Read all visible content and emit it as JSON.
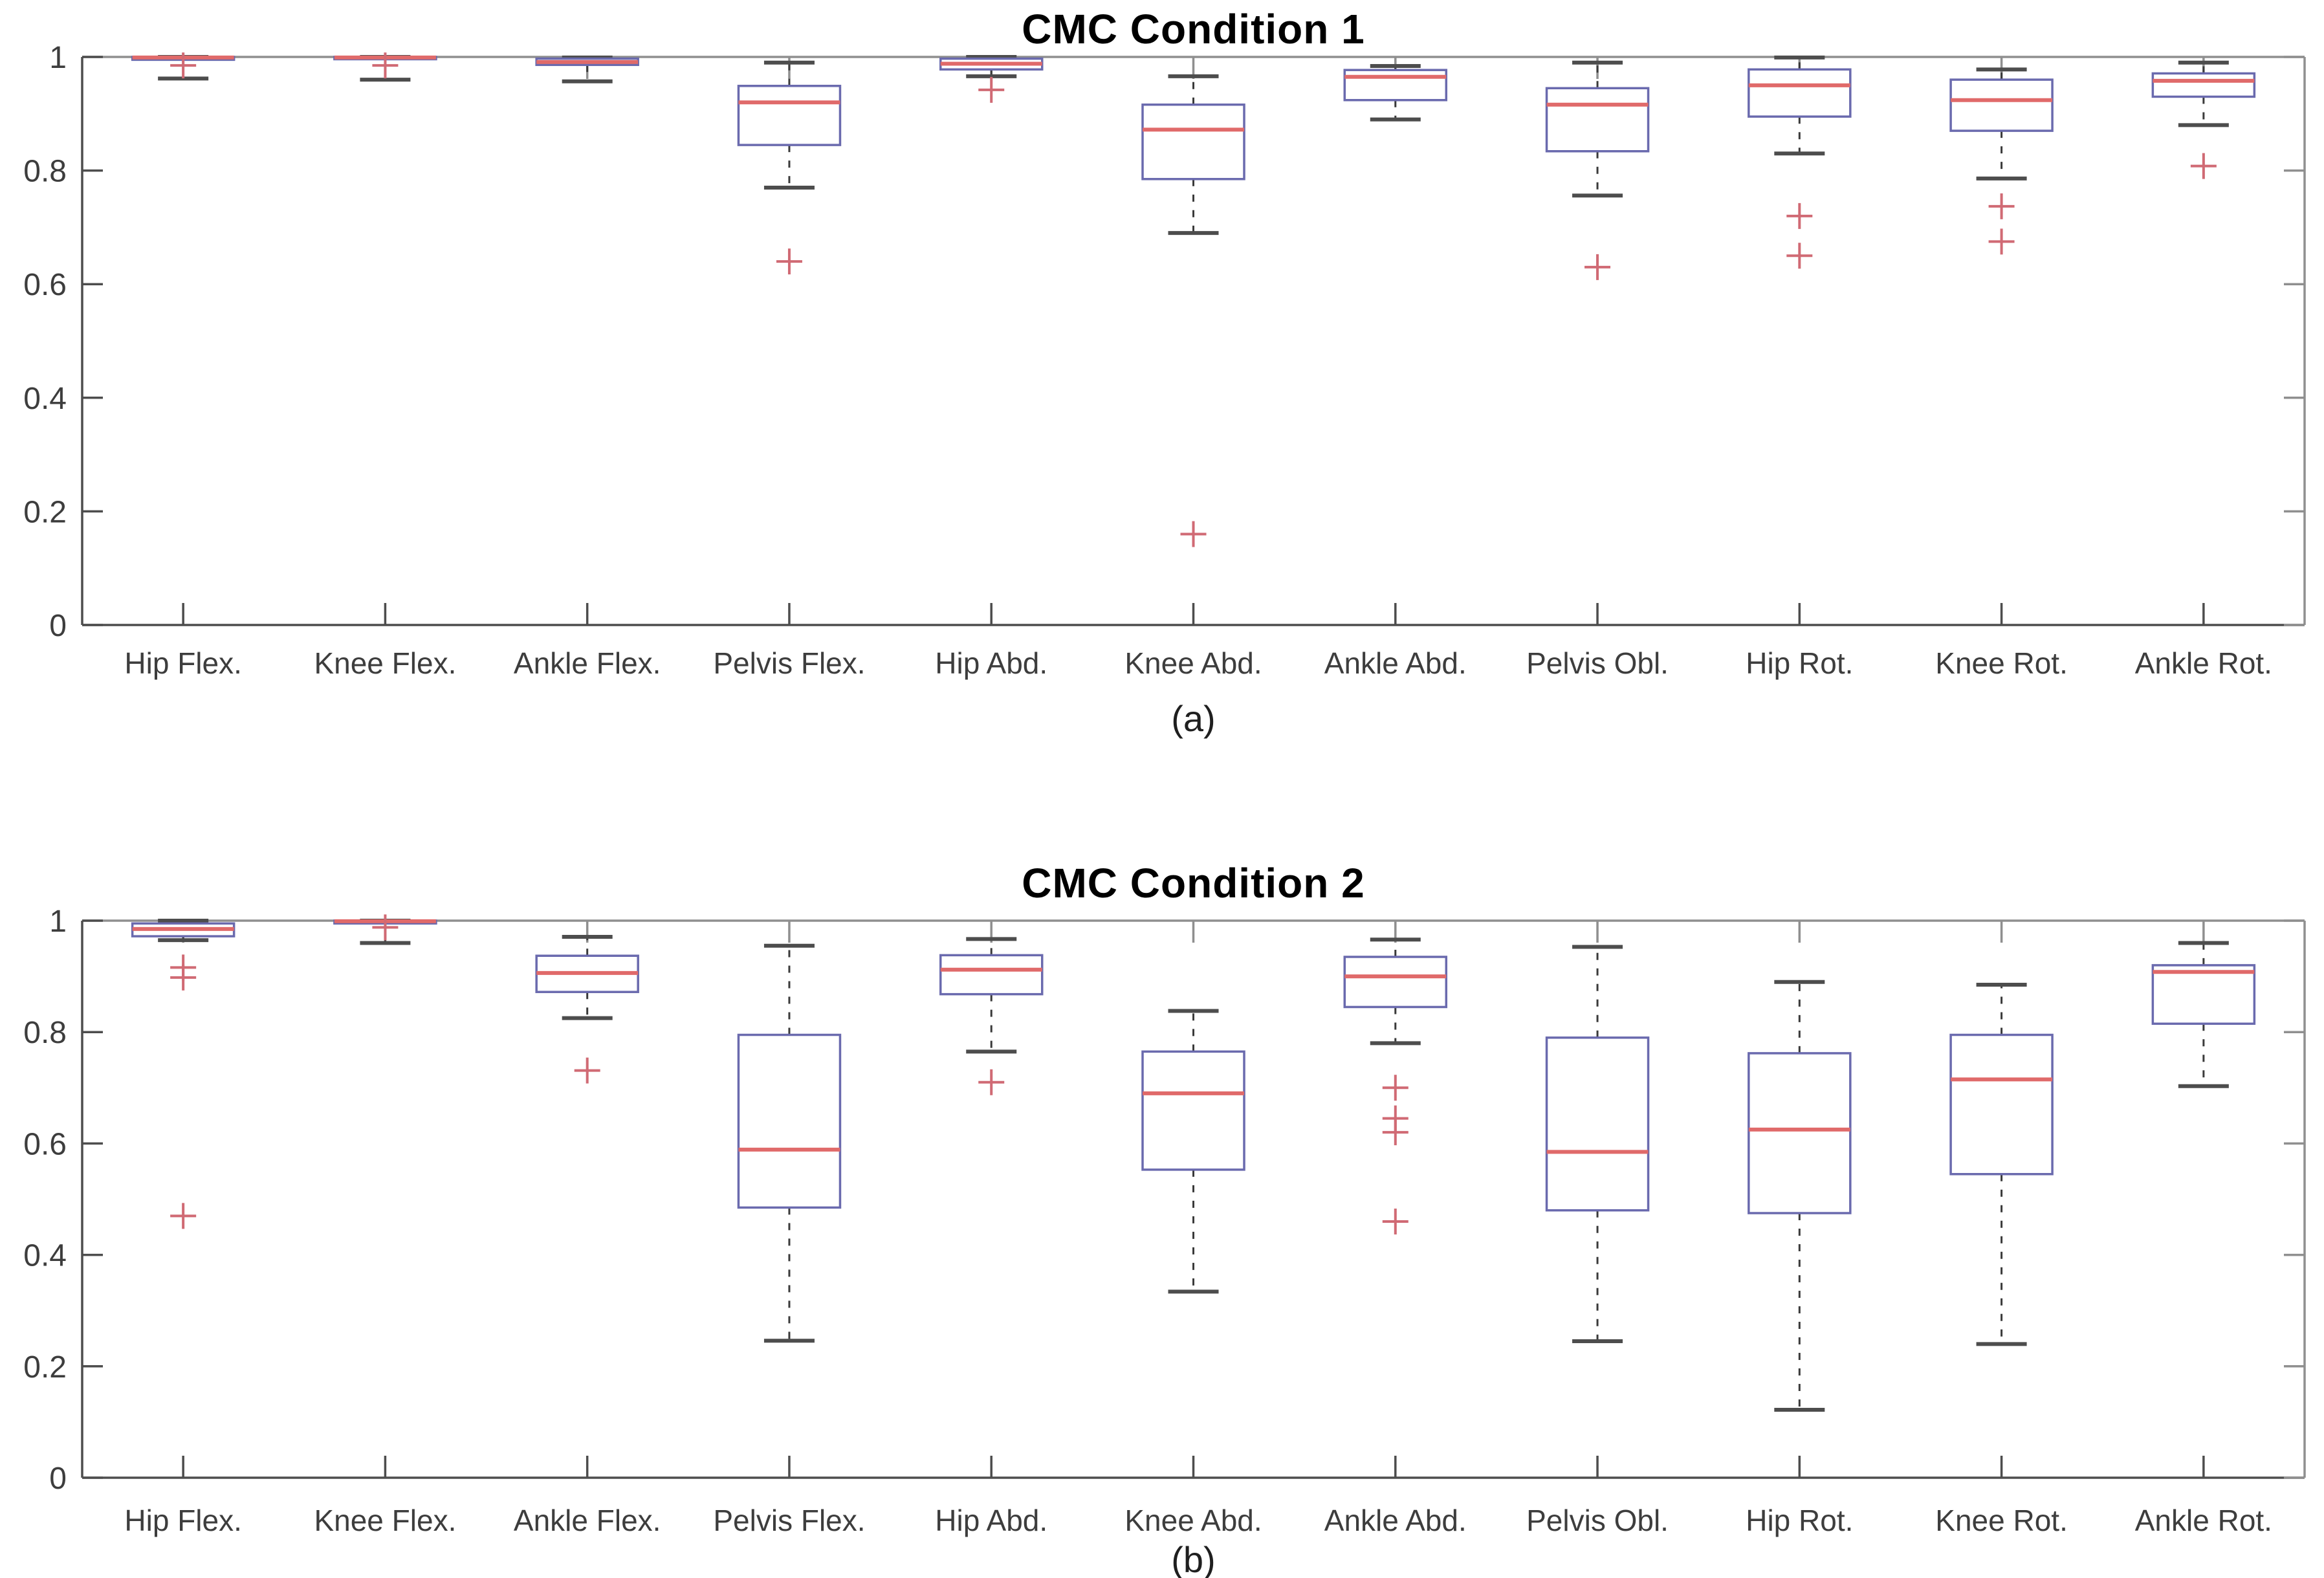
{
  "figure": {
    "background": "#ffffff",
    "panel_count": 2
  },
  "colors": {
    "box_edge": "#6a6aae",
    "box_fill": "#ffffff",
    "median": "#e06a6a",
    "whisker": "#3a3a3a",
    "whisker_cap": "#4d4d4d",
    "outlier": "#d06a74",
    "axis_dark": "#4d4d4d",
    "axis_light": "#8f8f8f",
    "tick_text": "#3d3d3d",
    "title_text": "#000000"
  },
  "chart_data": [
    {
      "type": "boxplot",
      "title": "CMC Condition 1",
      "sublabel": "(a)",
      "xlabel": "",
      "ylabel": "",
      "ylim": [
        0,
        1
      ],
      "yticks": [
        0,
        0.2,
        0.4,
        0.6,
        0.8,
        1
      ],
      "grid": false,
      "categories": [
        "Hip Flex.",
        "Knee Flex.",
        "Ankle Flex.",
        "Pelvis Flex.",
        "Hip Abd.",
        "Knee Abd.",
        "Ankle Abd.",
        "Pelvis Obl.",
        "Hip Rot.",
        "Knee Rot.",
        "Ankle Rot."
      ],
      "boxes": [
        {
          "whislo": 0.962,
          "q1": 0.995,
          "med": 0.999,
          "q3": 1.0,
          "whishi": 1.0,
          "outliers": [
            0.985
          ]
        },
        {
          "whislo": 0.96,
          "q1": 0.996,
          "med": 0.999,
          "q3": 1.0,
          "whishi": 1.0,
          "outliers": [
            0.985
          ]
        },
        {
          "whislo": 0.957,
          "q1": 0.986,
          "med": 0.991,
          "q3": 0.997,
          "whishi": 0.999,
          "outliers": []
        },
        {
          "whislo": 0.77,
          "q1": 0.845,
          "med": 0.92,
          "q3": 0.949,
          "whishi": 0.99,
          "outliers": [
            0.64
          ]
        },
        {
          "whislo": 0.966,
          "q1": 0.978,
          "med": 0.988,
          "q3": 0.997,
          "whishi": 1.0,
          "outliers": [
            0.942
          ]
        },
        {
          "whislo": 0.69,
          "q1": 0.785,
          "med": 0.872,
          "q3": 0.916,
          "whishi": 0.966,
          "outliers": [
            0.16
          ]
        },
        {
          "whislo": 0.89,
          "q1": 0.924,
          "med": 0.965,
          "q3": 0.977,
          "whishi": 0.984,
          "outliers": []
        },
        {
          "whislo": 0.756,
          "q1": 0.834,
          "med": 0.916,
          "q3": 0.945,
          "whishi": 0.99,
          "outliers": [
            0.63
          ]
        },
        {
          "whislo": 0.83,
          "q1": 0.895,
          "med": 0.95,
          "q3": 0.978,
          "whishi": 0.999,
          "outliers": [
            0.72,
            0.65
          ]
        },
        {
          "whislo": 0.786,
          "q1": 0.87,
          "med": 0.924,
          "q3": 0.96,
          "whishi": 0.978,
          "outliers": [
            0.737,
            0.675
          ]
        },
        {
          "whislo": 0.88,
          "q1": 0.93,
          "med": 0.958,
          "q3": 0.971,
          "whishi": 0.99,
          "outliers": [
            0.808
          ]
        }
      ]
    },
    {
      "type": "boxplot",
      "title": "CMC Condition 2",
      "sublabel": "(b)",
      "xlabel": "",
      "ylabel": "",
      "ylim": [
        0,
        1
      ],
      "yticks": [
        0,
        0.2,
        0.4,
        0.6,
        0.8,
        1
      ],
      "grid": false,
      "categories": [
        "Hip Flex.",
        "Knee Flex.",
        "Ankle Flex.",
        "Pelvis Flex.",
        "Hip Abd.",
        "Knee Abd.",
        "Ankle Abd.",
        "Pelvis Obl.",
        "Hip Rot.",
        "Knee Rot.",
        "Ankle Rot."
      ],
      "boxes": [
        {
          "whislo": 0.965,
          "q1": 0.972,
          "med": 0.985,
          "q3": 0.995,
          "whishi": 1.0,
          "outliers": [
            0.916,
            0.898,
            0.47
          ]
        },
        {
          "whislo": 0.96,
          "q1": 0.995,
          "med": 0.999,
          "q3": 1.0,
          "whishi": 1.0,
          "outliers": [
            0.988
          ]
        },
        {
          "whislo": 0.825,
          "q1": 0.872,
          "med": 0.906,
          "q3": 0.937,
          "whishi": 0.971,
          "outliers": [
            0.731
          ]
        },
        {
          "whislo": 0.246,
          "q1": 0.485,
          "med": 0.589,
          "q3": 0.795,
          "whishi": 0.955,
          "outliers": []
        },
        {
          "whislo": 0.765,
          "q1": 0.868,
          "med": 0.912,
          "q3": 0.938,
          "whishi": 0.967,
          "outliers": [
            0.71
          ]
        },
        {
          "whislo": 0.334,
          "q1": 0.553,
          "med": 0.69,
          "q3": 0.765,
          "whishi": 0.838,
          "outliers": []
        },
        {
          "whislo": 0.78,
          "q1": 0.845,
          "med": 0.9,
          "q3": 0.935,
          "whishi": 0.966,
          "outliers": [
            0.7,
            0.645,
            0.62,
            0.46
          ]
        },
        {
          "whislo": 0.245,
          "q1": 0.48,
          "med": 0.585,
          "q3": 0.79,
          "whishi": 0.953,
          "outliers": []
        },
        {
          "whislo": 0.122,
          "q1": 0.475,
          "med": 0.625,
          "q3": 0.762,
          "whishi": 0.89,
          "outliers": []
        },
        {
          "whislo": 0.24,
          "q1": 0.545,
          "med": 0.715,
          "q3": 0.795,
          "whishi": 0.885,
          "outliers": []
        },
        {
          "whislo": 0.703,
          "q1": 0.815,
          "med": 0.908,
          "q3": 0.92,
          "whishi": 0.96,
          "outliers": []
        }
      ]
    }
  ]
}
